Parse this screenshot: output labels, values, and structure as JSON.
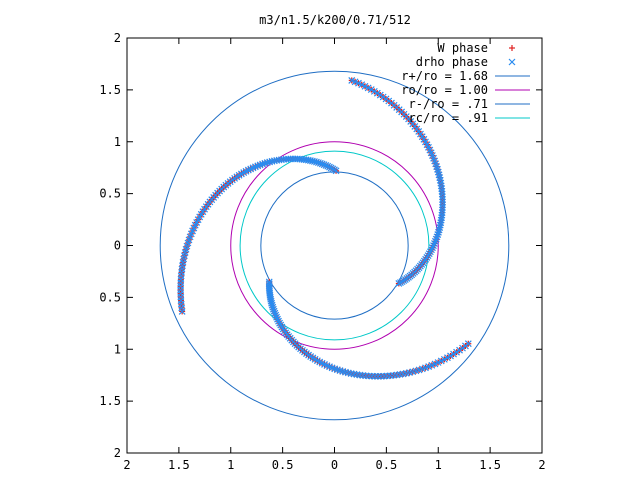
{
  "chart_data": {
    "type": "scatter",
    "title": "m3/n1.5/k200/0.71/512",
    "xlabel": "",
    "ylabel": "",
    "xlim": [
      -2,
      2
    ],
    "ylim": [
      -2,
      2
    ],
    "grid": false,
    "legend_position": "top-right",
    "x_tick_labels": [
      "2",
      "1.5",
      "1",
      "0.5",
      "0",
      "0.5",
      "1",
      "1.5",
      "2"
    ],
    "y_tick_labels": [
      "2",
      "1.5",
      "1",
      "0.5",
      "0",
      "0.5",
      "1",
      "1.5",
      "2"
    ],
    "circles": [
      {
        "label": "r+/ro = 1.68",
        "radius": 1.68,
        "color": "#1f6ec4"
      },
      {
        "label": "ro/ro = 1.00",
        "radius": 1.0,
        "color": "#b000b0"
      },
      {
        "label": "r-/ro = .71",
        "radius": 0.71,
        "color": "#1f6ec4"
      },
      {
        "label": "rc/ro = .91",
        "radius": 0.91,
        "color": "#00c8c8"
      }
    ],
    "series": [
      {
        "name": "W phase",
        "marker": "+",
        "color": "#e02020",
        "arms": [
          {
            "start_angle": 1.55,
            "start_r": 0.72,
            "end_angle": 3.55,
            "end_r": 1.6,
            "count": 95
          },
          {
            "start_angle": 3.65,
            "start_r": 0.72,
            "end_angle": 5.65,
            "end_r": 1.6,
            "count": 95
          },
          {
            "start_angle": 5.75,
            "start_r": 0.72,
            "end_angle": 7.75,
            "end_r": 1.6,
            "count": 95
          }
        ]
      },
      {
        "name": "drho phase",
        "marker": "x",
        "color": "#2a8cf0",
        "arms": [
          {
            "start_angle": 1.55,
            "start_r": 0.72,
            "end_angle": 3.55,
            "end_r": 1.6,
            "count": 95
          },
          {
            "start_angle": 3.65,
            "start_r": 0.72,
            "end_angle": 5.65,
            "end_r": 1.6,
            "count": 95
          },
          {
            "start_angle": 5.75,
            "start_r": 0.72,
            "end_angle": 7.75,
            "end_r": 1.6,
            "count": 95
          }
        ]
      }
    ]
  }
}
